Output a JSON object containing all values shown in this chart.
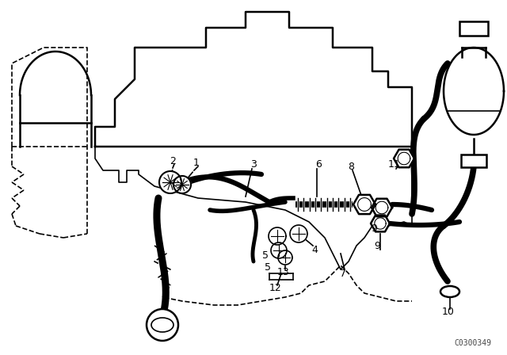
{
  "bg_color": "#ffffff",
  "line_color": "#000000",
  "fig_width": 6.4,
  "fig_height": 4.48,
  "dpi": 100,
  "watermark": "C0300349",
  "xlim": [
    0,
    640
  ],
  "ylim": [
    0,
    448
  ]
}
